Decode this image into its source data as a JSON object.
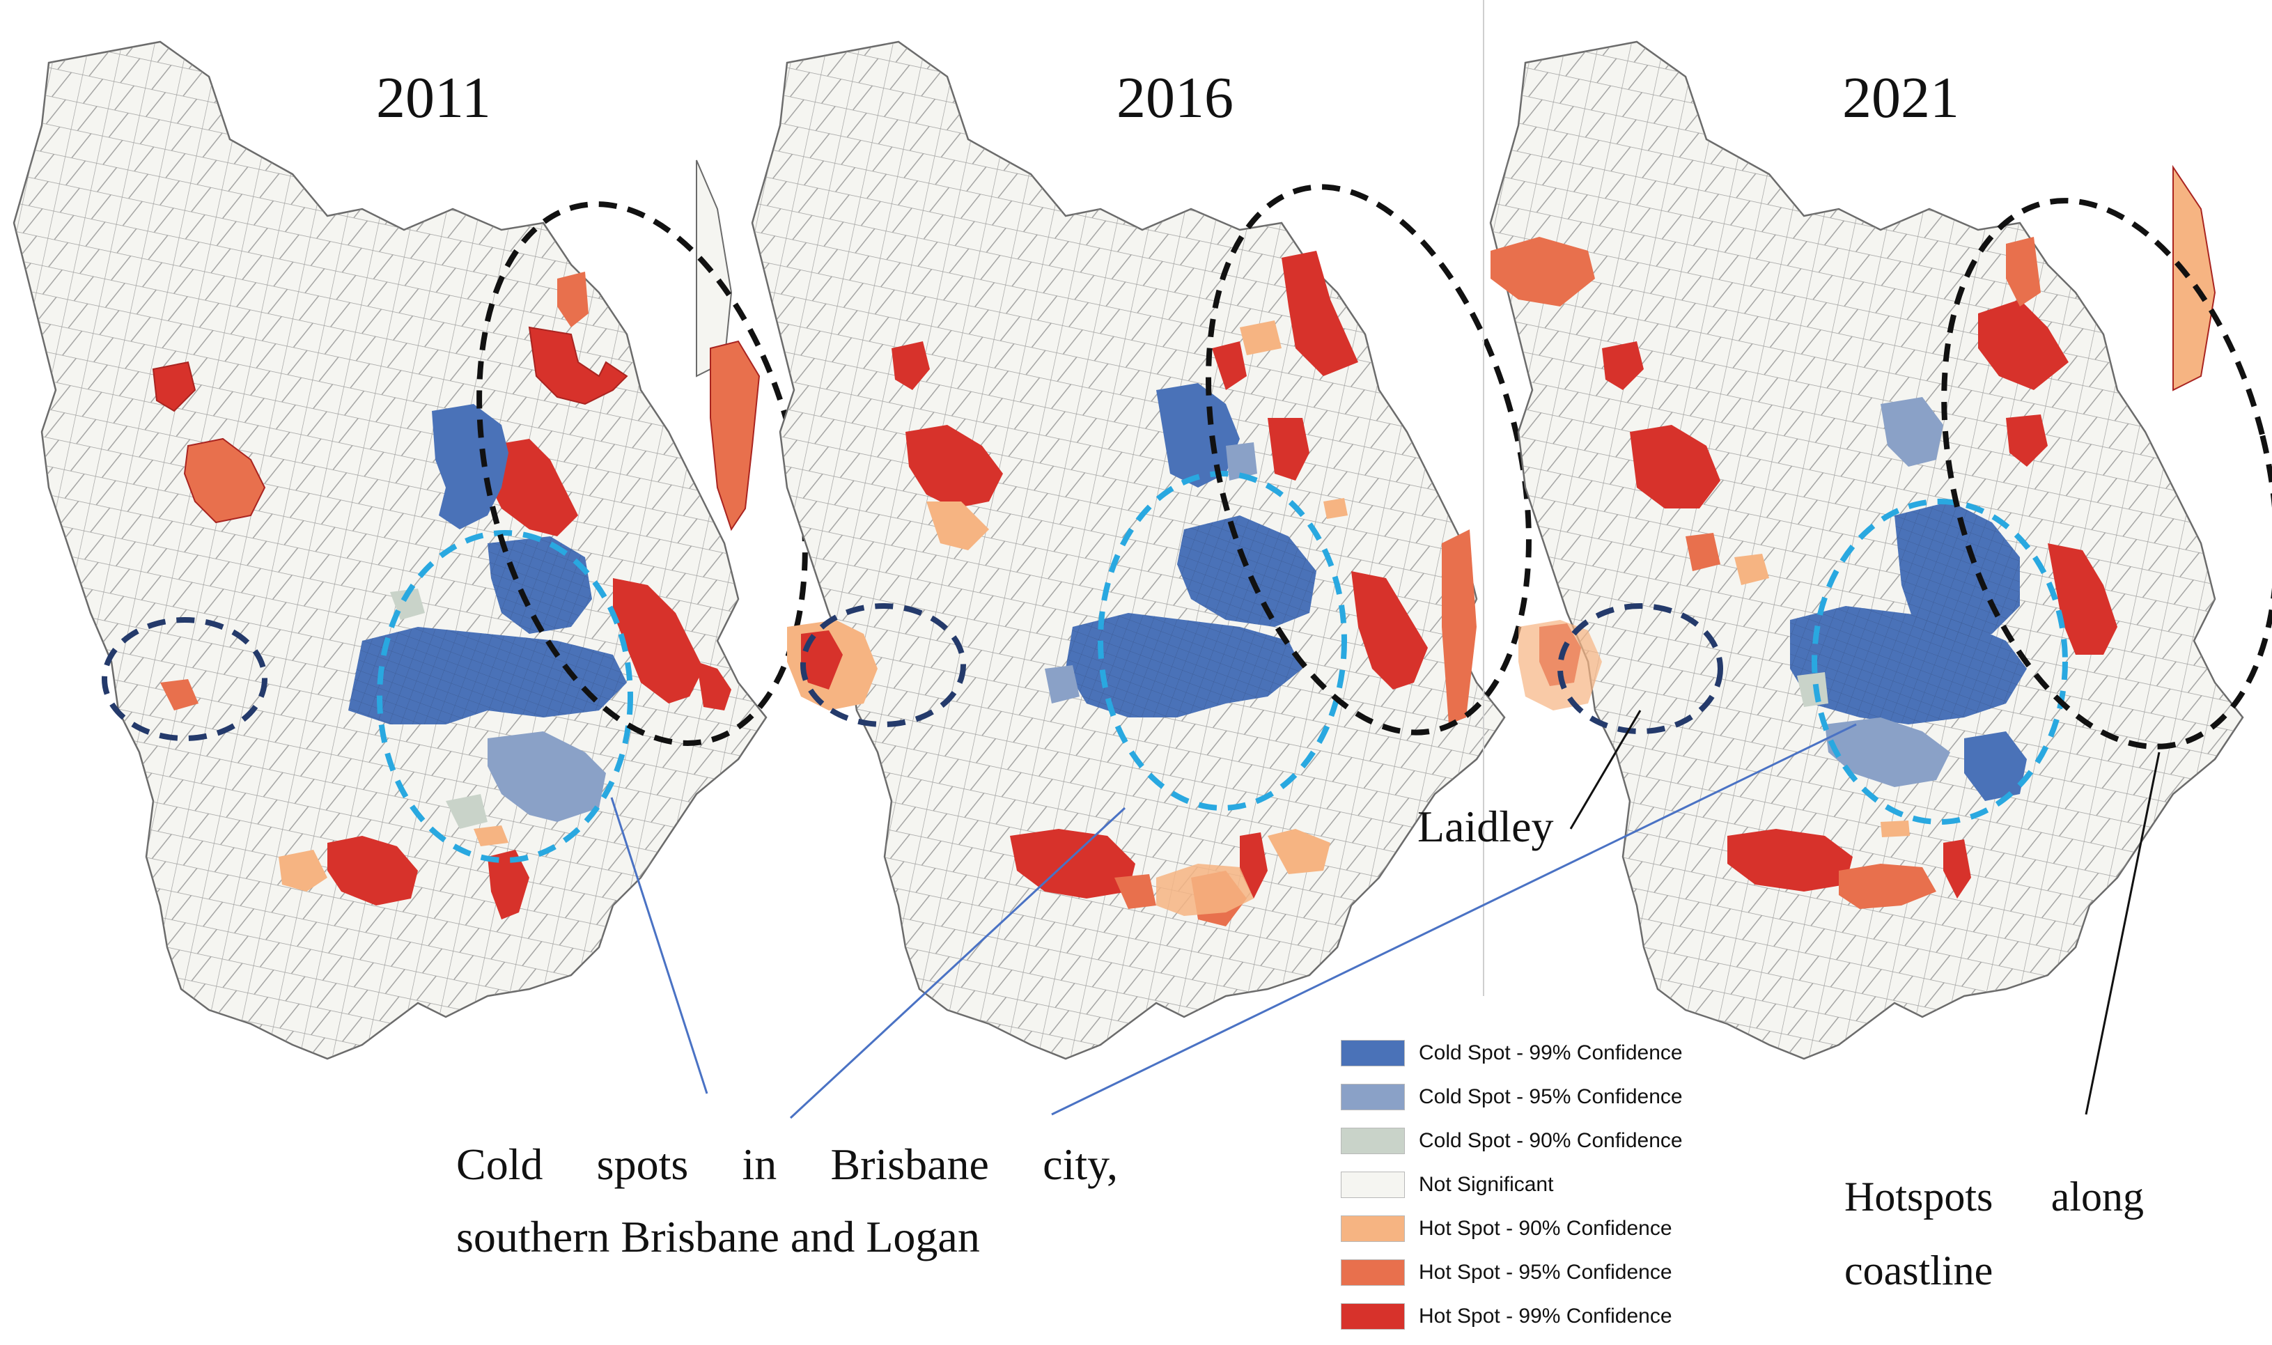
{
  "maps": [
    {
      "id": "map-2011",
      "year": "2011"
    },
    {
      "id": "map-2016",
      "year": "2016"
    },
    {
      "id": "map-2021",
      "year": "2021"
    }
  ],
  "legend": {
    "items": [
      {
        "label": "Cold Spot - 99% Confidence",
        "color": "#4a72b8"
      },
      {
        "label": "Cold Spot - 95% Confidence",
        "color": "#8aa1c7"
      },
      {
        "label": "Cold Spot - 90% Confidence",
        "color": "#c9d3c9"
      },
      {
        "label": "Not Significant",
        "color": "#f5f5f1"
      },
      {
        "label": "Hot Spot - 90% Confidence",
        "color": "#f6b482"
      },
      {
        "label": "Hot Spot - 95% Confidence",
        "color": "#e8704d"
      },
      {
        "label": "Hot Spot - 99% Confidence",
        "color": "#d7322b"
      }
    ]
  },
  "annotations": {
    "cold_spots": {
      "line1_words": [
        "Cold",
        "spots",
        "in",
        "Brisbane",
        "city,"
      ],
      "line2": "southern Brisbane and Logan"
    },
    "hotspots": {
      "line1_words": [
        "Hotspots",
        "along"
      ],
      "line2": "coastline"
    },
    "laidley": "Laidley"
  },
  "colors": {
    "boundary": "#6b6b6b",
    "cold_circle": "#29a8e0",
    "laidley_circle": "#243a6b",
    "coast_ellipse": "#111111",
    "leader_line": "#4a72c4"
  }
}
